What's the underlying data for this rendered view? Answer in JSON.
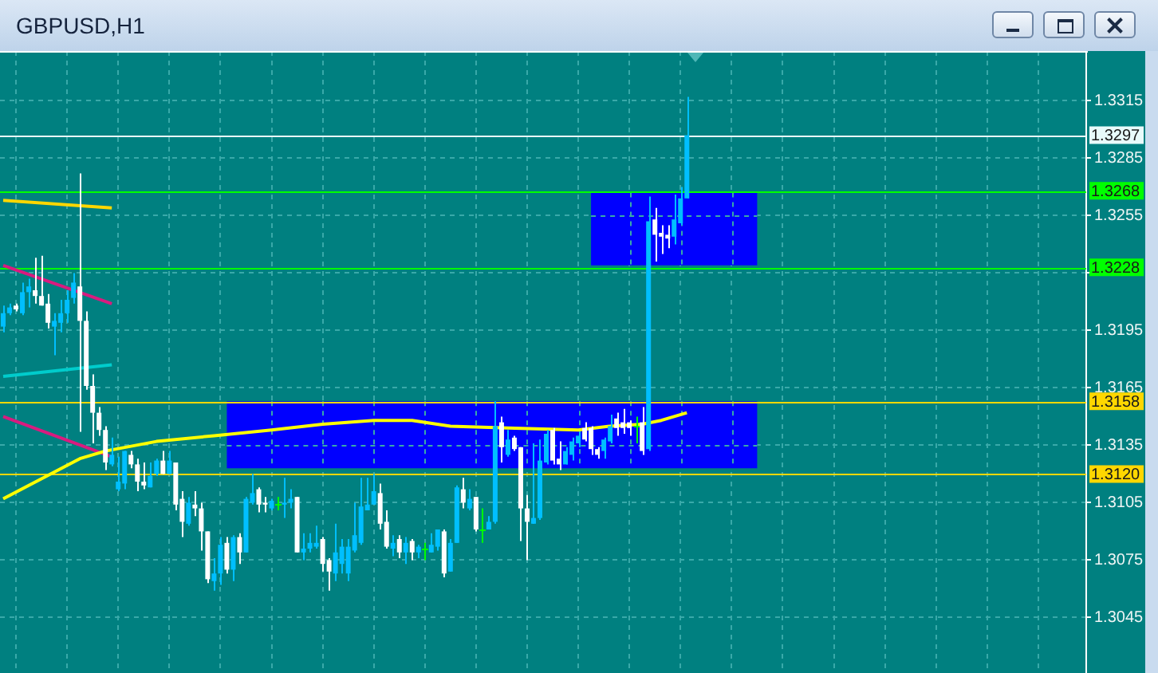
{
  "chart_data": {
    "type": "candlestick",
    "title": "GBPUSD,H1",
    "categories": [
      null,
      null,
      null,
      null,
      null,
      null,
      null,
      null,
      null,
      null,
      null,
      null,
      null,
      null,
      null,
      null,
      null,
      null,
      null,
      null,
      null,
      null,
      null,
      null,
      null,
      null,
      null,
      null,
      null,
      null,
      null,
      null,
      null,
      null,
      null,
      null,
      null,
      null,
      null,
      null,
      null,
      null,
      null,
      null,
      null,
      null,
      null,
      null,
      null,
      null,
      null,
      null,
      null,
      null,
      null,
      null,
      null,
      null,
      null,
      null,
      null,
      null,
      null,
      null,
      null,
      null,
      null,
      null,
      null,
      null,
      null,
      null,
      null,
      null,
      null,
      null,
      null,
      null,
      null,
      null,
      null,
      null,
      null,
      null,
      null,
      null,
      null,
      null,
      null,
      null,
      null,
      null,
      null,
      null,
      null,
      null,
      null,
      null,
      null,
      null,
      null,
      null,
      null,
      null,
      null,
      null,
      null,
      null,
      null,
      null,
      null,
      null,
      null,
      null,
      null,
      null,
      null,
      null,
      null,
      null,
      null,
      null,
      null,
      null,
      null,
      null,
      null,
      null,
      null,
      null,
      null,
      null,
      null,
      null,
      null,
      null,
      null,
      null,
      null,
      null,
      null,
      null,
      null,
      null,
      null,
      null,
      null,
      null,
      null,
      null,
      null,
      null,
      null,
      null,
      null,
      null,
      null,
      null,
      null,
      null,
      null,
      null,
      null,
      null,
      null,
      null,
      null,
      null,
      null,
      null
    ],
    "ohlc": [
      [
        1.3197,
        1.3208,
        1.3194,
        1.3204
      ],
      [
        1.3204,
        1.3209,
        1.3203,
        1.3207
      ],
      [
        1.3208,
        1.3209,
        1.3205,
        1.3206
      ],
      [
        1.3204,
        1.322,
        1.3203,
        1.3215
      ],
      [
        1.3215,
        1.3222,
        1.3207,
        1.3218
      ],
      [
        1.3216,
        1.3233,
        1.3209,
        1.3213
      ],
      [
        1.3213,
        1.3234,
        1.3208,
        1.3208
      ],
      [
        1.3209,
        1.3214,
        1.3196,
        1.3199
      ],
      [
        1.3197,
        1.3204,
        1.3182,
        1.32
      ],
      [
        1.3199,
        1.3211,
        1.3194,
        1.3204
      ],
      [
        1.3204,
        1.3216,
        1.3199,
        1.3211
      ],
      [
        1.3212,
        1.3225,
        1.3209,
        1.322
      ],
      [
        1.3218,
        1.3277,
        1.3142,
        1.32
      ],
      [
        1.32,
        1.3205,
        1.3164,
        1.3166
      ],
      [
        1.3166,
        1.3172,
        1.3136,
        1.3152
      ],
      [
        1.3152,
        1.3155,
        1.314,
        1.3143
      ],
      [
        1.3143,
        1.3145,
        1.3122,
        1.3126
      ],
      [
        1.3125,
        1.3139,
        1.3124,
        1.313
      ],
      [
        1.3112,
        1.3129,
        1.3111,
        1.3116
      ],
      [
        1.3115,
        1.3132,
        1.3112,
        1.3132
      ],
      [
        1.313,
        1.3132,
        1.3123,
        1.3125
      ],
      [
        1.3125,
        1.3128,
        1.3111,
        1.3116
      ],
      [
        1.3116,
        1.3126,
        1.3112,
        1.3114
      ],
      [
        1.3113,
        1.3126,
        1.3113,
        1.3119
      ],
      [
        1.312,
        1.3128,
        1.3119,
        1.3127
      ],
      [
        1.3127,
        1.3132,
        1.312,
        1.312
      ],
      [
        1.312,
        1.3132,
        1.312,
        1.3127
      ],
      [
        1.3126,
        1.3126,
        1.3101,
        1.3104
      ],
      [
        1.3107,
        1.3111,
        1.3087,
        1.3095
      ],
      [
        1.3094,
        1.3108,
        1.3093,
        1.3105
      ],
      [
        1.3104,
        1.3111,
        1.3098,
        1.3102
      ],
      [
        1.3102,
        1.3105,
        1.308,
        1.309
      ],
      [
        1.309,
        1.309,
        1.3063,
        1.3065
      ],
      [
        1.3064,
        1.3076,
        1.3059,
        1.3068
      ],
      [
        1.3068,
        1.3087,
        1.3062,
        1.3083
      ],
      [
        1.3084,
        1.3087,
        1.3068,
        1.307
      ],
      [
        1.307,
        1.3088,
        1.3064,
        1.3087
      ],
      [
        1.3087,
        1.3089,
        1.3073,
        1.3079
      ],
      [
        1.3079,
        1.3108,
        1.3079,
        1.3107
      ],
      [
        1.3105,
        1.312,
        1.3104,
        1.311
      ],
      [
        1.3112,
        1.3113,
        1.31,
        1.3104
      ],
      [
        1.3105,
        1.3108,
        1.31,
        1.3104
      ],
      [
        1.3102,
        1.3107,
        1.3101,
        1.3106
      ],
      [
        1.3104,
        1.3108,
        1.3101,
        1.3104
      ],
      [
        1.3104,
        1.3118,
        1.3097,
        1.3105
      ],
      [
        1.3105,
        1.3112,
        1.3102,
        1.3107
      ],
      [
        1.3108,
        1.3108,
        1.3079,
        1.3079
      ],
      [
        1.3079,
        1.3089,
        1.3075,
        1.3081
      ],
      [
        1.3081,
        1.3089,
        1.3079,
        1.3084
      ],
      [
        1.3082,
        1.3093,
        1.3081,
        1.3084
      ],
      [
        1.3086,
        1.3087,
        1.3069,
        1.3073
      ],
      [
        1.3075,
        1.3076,
        1.3059,
        1.3069
      ],
      [
        1.3068,
        1.3094,
        1.3064,
        1.3079
      ],
      [
        1.3073,
        1.3086,
        1.3068,
        1.3082
      ],
      [
        1.3068,
        1.3086,
        1.3064,
        1.3082
      ],
      [
        1.308,
        1.3105,
        1.3079,
        1.3088
      ],
      [
        1.3084,
        1.3118,
        1.3083,
        1.3103
      ],
      [
        1.3101,
        1.3118,
        1.3101,
        1.3104
      ],
      [
        1.3104,
        1.312,
        1.3104,
        1.3111
      ],
      [
        1.311,
        1.3115,
        1.3091,
        1.3094
      ],
      [
        1.3095,
        1.3101,
        1.3081,
        1.3082
      ],
      [
        1.3081,
        1.3088,
        1.3077,
        1.3084
      ],
      [
        1.3086,
        1.3088,
        1.3076,
        1.3079
      ],
      [
        1.3079,
        1.3087,
        1.3073,
        1.3084
      ],
      [
        1.3085,
        1.3086,
        1.3075,
        1.3079
      ],
      [
        1.3079,
        1.3083,
        1.3076,
        1.3082
      ],
      [
        1.3081,
        1.3084,
        1.3075,
        1.3081
      ],
      [
        1.3079,
        1.3089,
        1.3079,
        1.3083
      ],
      [
        1.3082,
        1.3091,
        1.308,
        1.3091
      ],
      [
        1.309,
        1.3091,
        1.3066,
        1.3068
      ],
      [
        1.3069,
        1.3086,
        1.3069,
        1.3084
      ],
      [
        1.3084,
        1.3114,
        1.3084,
        1.3113
      ],
      [
        1.3112,
        1.3118,
        1.3102,
        1.3105
      ],
      [
        1.3102,
        1.3112,
        1.3101,
        1.3107
      ],
      [
        1.3108,
        1.3108,
        1.309,
        1.3091
      ],
      [
        1.3091,
        1.3102,
        1.3084,
        1.3091
      ],
      [
        1.3091,
        1.3098,
        1.3091,
        1.3095
      ],
      [
        1.3095,
        1.3158,
        1.3094,
        1.3145
      ],
      [
        1.3147,
        1.315,
        1.3126,
        1.3134
      ],
      [
        1.313,
        1.3143,
        1.3129,
        1.3138
      ],
      [
        1.3139,
        1.314,
        1.3132,
        1.3133
      ],
      [
        1.3134,
        1.3134,
        1.3085,
        1.3102
      ],
      [
        1.3102,
        1.3109,
        1.3075,
        1.3095
      ],
      [
        1.3094,
        1.3136,
        1.3094,
        1.3097
      ],
      [
        1.3097,
        1.3138,
        1.3096,
        1.3127
      ],
      [
        1.3126,
        1.3143,
        1.3125,
        1.3141
      ],
      [
        1.3143,
        1.3144,
        1.3125,
        1.3127
      ],
      [
        1.3128,
        1.3137,
        1.3122,
        1.3125
      ],
      [
        1.3125,
        1.3134,
        1.3125,
        1.3132
      ],
      [
        1.313,
        1.3139,
        1.3127,
        1.3137
      ],
      [
        1.3136,
        1.3142,
        1.3134,
        1.314
      ],
      [
        1.3144,
        1.3147,
        1.3137,
        1.3138
      ],
      [
        1.3144,
        1.3145,
        1.313,
        1.3133
      ],
      [
        1.3133,
        1.3134,
        1.3128,
        1.313
      ],
      [
        1.3132,
        1.3139,
        1.3128,
        1.3138
      ],
      [
        1.3137,
        1.3151,
        1.3136,
        1.3145
      ],
      [
        1.3149,
        1.3152,
        1.314,
        1.3144
      ],
      [
        1.3147,
        1.3154,
        1.3141,
        1.3144
      ],
      [
        1.3147,
        1.3148,
        1.314,
        1.3144
      ],
      [
        1.3145,
        1.315,
        1.3136,
        1.3145
      ],
      [
        1.3147,
        1.3155,
        1.313,
        1.3132
      ],
      [
        1.3133,
        1.3265,
        1.3132,
        1.3252
      ],
      [
        1.3253,
        1.3259,
        1.3231,
        1.3245
      ],
      [
        1.3246,
        1.325,
        1.3235,
        1.3244
      ],
      [
        1.3245,
        1.325,
        1.3238,
        1.3243
      ],
      [
        1.3244,
        1.3266,
        1.324,
        1.3253
      ],
      [
        1.3251,
        1.327,
        1.325,
        1.3264
      ],
      [
        1.3264,
        1.3317,
        1.3264,
        1.3297
      ],
      null,
      null,
      null,
      null,
      null,
      null,
      null,
      null,
      null,
      null,
      null,
      null,
      null,
      null,
      null,
      null,
      null,
      null,
      null,
      null,
      null,
      null,
      null,
      null,
      null,
      null,
      null,
      null,
      null,
      null,
      null,
      null,
      null,
      null,
      null,
      null,
      null,
      null,
      null,
      null,
      null,
      null,
      null,
      null,
      null,
      null,
      null,
      null,
      null,
      null,
      null,
      null,
      null,
      null,
      null,
      null,
      null,
      null,
      null,
      null,
      null,
      null
    ],
    "colors": [
      "#00bfff",
      "#00bfff",
      "#ffffff",
      "#00bfff",
      "#00bfff",
      "#ffffff",
      "#ffffff",
      "#ffffff",
      "#00bfff",
      "#00bfff",
      "#00bfff",
      "#00bfff",
      "#ffffff",
      "#ffffff",
      "#ffffff",
      "#ffffff",
      "#ffffff",
      "#00bfff",
      "#00bfff",
      "#00bfff",
      "#ffffff",
      "#ffffff",
      "#ffffff",
      "#00bfff",
      "#00bfff",
      "#ffffff",
      "#00bfff",
      "#ffffff",
      "#ffffff",
      "#00bfff",
      "#ffffff",
      "#ffffff",
      "#ffffff",
      "#00bfff",
      "#00bfff",
      "#ffffff",
      "#00bfff",
      "#ffffff",
      "#00bfff",
      "#00bfff",
      "#ffffff",
      "#ffffff",
      "#00bfff",
      "#00ff00",
      "#00bfff",
      "#00bfff",
      "#ffffff",
      "#00bfff",
      "#00bfff",
      "#00bfff",
      "#ffffff",
      "#ffffff",
      "#00bfff",
      "#00bfff",
      "#00bfff",
      "#00bfff",
      "#00bfff",
      "#00bfff",
      "#00bfff",
      "#ffffff",
      "#ffffff",
      "#00bfff",
      "#ffffff",
      "#00bfff",
      "#ffffff",
      "#00bfff",
      "#00ff00",
      "#00bfff",
      "#00bfff",
      "#ffffff",
      "#00bfff",
      "#00bfff",
      "#ffffff",
      "#00bfff",
      "#ffffff",
      "#00ff00",
      "#00bfff",
      "#00bfff",
      "#ffffff",
      "#00bfff",
      "#ffffff",
      "#ffffff",
      "#ffffff",
      "#00bfff",
      "#00bfff",
      "#00bfff",
      "#ffffff",
      "#ffffff",
      "#00bfff",
      "#00bfff",
      "#00bfff",
      "#ffffff",
      "#ffffff",
      "#ffffff",
      "#00bfff",
      "#00bfff",
      "#ffffff",
      "#ffffff",
      "#ffffff",
      "#00ff00",
      "#ffffff",
      "#00bfff",
      "#ffffff",
      "#ffffff",
      "#ffffff",
      "#00bfff",
      "#00bfff",
      "#00bfff",
      null,
      null,
      null,
      null,
      null,
      null,
      null,
      null,
      null,
      null,
      null,
      null,
      null,
      null,
      null,
      null,
      null,
      null,
      null,
      null,
      null,
      null,
      null,
      null,
      null,
      null,
      null,
      null,
      null,
      null,
      null,
      null,
      null,
      null,
      null,
      null,
      null,
      null,
      null,
      null,
      null,
      null,
      null,
      null,
      null,
      null,
      null,
      null,
      null,
      null,
      null,
      null,
      null,
      null,
      null,
      null,
      null,
      null,
      null,
      null,
      null,
      null
    ],
    "series": [
      {
        "type": "line",
        "color": "#ffff00",
        "values": [
          1.3107,
          null,
          null,
          null,
          null,
          null,
          null,
          null,
          null,
          null,
          null,
          null,
          1.3128,
          null,
          null,
          null,
          1.3132,
          null,
          null,
          null,
          null,
          null,
          null,
          null,
          1.3137,
          null,
          null,
          null,
          null,
          null,
          null,
          null,
          null,
          1.314,
          null,
          null,
          null,
          null,
          null,
          null,
          null,
          null,
          1.3143,
          null,
          null,
          null,
          null,
          null,
          null,
          null,
          1.3146,
          null,
          null,
          null,
          null,
          null,
          null,
          null,
          1.3148,
          null,
          null,
          null,
          null,
          null,
          1.3148,
          null,
          null,
          null,
          null,
          null,
          1.3145,
          null,
          null,
          null,
          null,
          null,
          null,
          null,
          null,
          1.3144,
          null,
          null,
          null,
          null,
          null,
          null,
          null,
          null,
          null,
          null,
          1.3143,
          null,
          null,
          null,
          null,
          1.3145,
          null,
          null,
          null,
          null,
          1.3146,
          null,
          null,
          1.3148,
          null,
          null,
          null,
          1.3152,
          null,
          null,
          null,
          null,
          null,
          null,
          null,
          null,
          null,
          null,
          null,
          null,
          null,
          null,
          null,
          null,
          null,
          null,
          null,
          null,
          null,
          null,
          null,
          null,
          null,
          null,
          null,
          null,
          null,
          null,
          null,
          null,
          null,
          null,
          null,
          null,
          null,
          null,
          null,
          null,
          null,
          null,
          null,
          null,
          null,
          null,
          null,
          null,
          null,
          null,
          null,
          null,
          null,
          null,
          null,
          null,
          null,
          null,
          null,
          null,
          null,
          null
        ]
      },
      {
        "type": "line",
        "color": "#ffd700",
        "values": [
          1.3263,
          null,
          null,
          null,
          null,
          null,
          null,
          null,
          null,
          null,
          null,
          null,
          null,
          null,
          null,
          null,
          null,
          1.3259,
          null,
          null,
          null,
          null,
          null,
          null,
          null,
          null,
          null,
          null,
          null,
          null,
          null,
          null,
          null,
          null,
          null,
          null,
          null,
          null,
          null,
          null,
          null,
          null,
          null,
          null,
          null,
          null,
          null,
          null,
          null,
          null,
          null,
          null,
          null,
          null,
          null,
          null,
          null,
          null,
          null,
          null,
          null,
          null,
          null,
          null,
          null,
          null,
          null,
          null,
          null,
          null,
          null,
          null,
          null,
          null,
          null,
          null,
          null,
          null,
          null,
          null,
          null,
          null,
          null,
          null,
          null,
          null,
          null,
          null,
          null,
          null,
          null,
          null,
          null,
          null,
          null,
          null,
          null,
          null,
          null,
          null,
          null,
          null,
          null,
          null,
          null,
          null,
          null,
          null,
          null,
          null,
          null,
          null,
          null,
          null,
          null,
          null,
          null,
          null,
          null,
          null,
          null,
          null,
          null,
          null,
          null,
          null,
          null,
          null,
          null,
          null,
          null,
          null,
          null,
          null,
          null,
          null,
          null,
          null,
          null,
          null,
          null,
          null,
          null,
          null,
          null,
          null,
          null,
          null,
          null,
          null,
          null,
          null,
          null,
          null,
          null,
          null,
          null,
          null,
          null,
          null,
          null,
          null,
          null,
          null,
          null,
          null,
          null,
          null,
          null,
          null
        ]
      },
      {
        "type": "line",
        "color": "#d81b7f",
        "values": [
          1.3229,
          null,
          null,
          null,
          null,
          null,
          null,
          null,
          null,
          null,
          null,
          null,
          null,
          null,
          null,
          null,
          null,
          1.3209,
          null,
          null,
          null,
          null,
          null,
          null,
          null,
          null,
          null,
          null,
          null,
          null,
          null,
          null,
          null,
          null,
          null,
          null,
          null,
          null,
          null,
          null,
          null,
          null,
          null,
          null,
          null,
          null,
          null,
          null,
          null,
          null,
          null,
          null,
          null,
          null,
          null,
          null,
          null,
          null,
          null,
          null,
          null,
          null,
          null,
          null,
          null,
          null,
          null,
          null,
          null,
          null,
          null,
          null,
          null,
          null,
          null,
          null,
          null,
          null,
          null,
          null,
          null,
          null,
          null,
          null,
          null,
          null,
          null,
          null,
          null,
          null,
          null,
          null,
          null,
          null,
          null,
          null,
          null,
          null,
          null,
          null,
          null,
          null,
          null,
          null,
          null,
          null,
          null,
          null,
          null,
          null,
          null,
          null,
          null,
          null,
          null,
          null,
          null,
          null,
          null,
          null,
          null,
          null,
          null,
          null,
          null,
          null,
          null,
          null,
          null,
          null,
          null,
          null,
          null,
          null,
          null,
          null,
          null,
          null,
          null,
          null,
          null,
          null,
          null,
          null,
          null,
          null,
          null,
          null,
          null,
          null,
          null,
          null,
          null,
          null,
          null,
          null,
          null,
          null,
          null,
          null,
          null,
          null,
          null,
          null,
          null,
          null,
          null,
          null,
          null,
          null
        ]
      },
      {
        "type": "line",
        "color": "#00cccc",
        "values": [
          1.3171,
          null,
          null,
          null,
          null,
          null,
          null,
          null,
          null,
          null,
          null,
          null,
          null,
          null,
          null,
          null,
          null,
          1.3177,
          null,
          null,
          null,
          null,
          null,
          null,
          null,
          null,
          null,
          null,
          null,
          null,
          null,
          null,
          null,
          null,
          null,
          null,
          null,
          null,
          null,
          null,
          null,
          null,
          null,
          null,
          null,
          null,
          null,
          null,
          null,
          null,
          null,
          null,
          null,
          null,
          null,
          null,
          null,
          null,
          null,
          null,
          null,
          null,
          null,
          null,
          null,
          null,
          null,
          null,
          null,
          null,
          null,
          null,
          null,
          null,
          null,
          null,
          null,
          null,
          null,
          null,
          null,
          null,
          null,
          null,
          null,
          null,
          null,
          null,
          null,
          null,
          null,
          null,
          null,
          null,
          null,
          null,
          null,
          null,
          null,
          null,
          null,
          null,
          null,
          null,
          null,
          null,
          null,
          null,
          null,
          null,
          null,
          null,
          null,
          null,
          null,
          null,
          null,
          null,
          null,
          null,
          null,
          null,
          null,
          null,
          null,
          null,
          null,
          null,
          null,
          null,
          null,
          null,
          null,
          null,
          null,
          null,
          null,
          null,
          null,
          null,
          null,
          null,
          null,
          null,
          null,
          null,
          null,
          null,
          null,
          null,
          null,
          null,
          null,
          null,
          null,
          null,
          null,
          null,
          null,
          null,
          null,
          null,
          null,
          null,
          null,
          null,
          null,
          null,
          null,
          null
        ]
      },
      {
        "type": "line",
        "color": "#d81b7f",
        "values": [
          1.315,
          null,
          null,
          null,
          null,
          null,
          null,
          null,
          null,
          null,
          null,
          null,
          null,
          null,
          null,
          null,
          null,
          1.3129,
          null,
          null,
          null,
          null,
          null,
          null,
          null,
          null,
          null,
          null,
          null,
          null,
          null,
          null,
          null,
          null,
          null,
          null,
          null,
          null,
          null,
          null,
          null,
          null,
          null,
          null,
          null,
          null,
          null,
          null,
          null,
          null,
          null,
          null,
          null,
          null,
          null,
          null,
          null,
          null,
          null,
          null,
          null,
          null,
          null,
          null,
          null,
          null,
          null,
          null,
          null,
          null,
          null,
          null,
          null,
          null,
          null,
          null,
          null,
          null,
          null,
          null,
          null,
          null,
          null,
          null,
          null,
          null,
          null,
          null,
          null,
          null,
          null,
          null,
          null,
          null,
          null,
          null,
          null,
          null,
          null,
          null,
          null,
          null,
          null,
          null,
          null,
          null,
          null,
          null,
          null,
          null,
          null,
          null,
          null,
          null,
          null,
          null,
          null,
          null,
          null,
          null,
          null,
          null,
          null,
          null,
          null,
          null,
          null,
          null,
          null,
          null,
          null,
          null,
          null,
          null,
          null,
          null,
          null,
          null,
          null,
          null,
          null,
          null,
          null,
          null,
          null,
          null,
          null,
          null,
          null,
          null,
          null,
          null,
          null,
          null,
          null,
          null,
          null,
          null,
          null,
          null,
          null,
          null,
          null,
          null,
          null,
          null,
          null,
          null,
          null,
          null
        ]
      }
    ],
    "ylim": [
      1.3016,
      1.3341
    ],
    "yticks": [
      1.3045,
      1.3075,
      1.3105,
      1.3135,
      1.3165,
      1.3195,
      {
        "value": 1.3225,
        "label": null
      },
      1.3255,
      1.3285,
      1.3315
    ],
    "grid": true,
    "tick_labels": "y",
    "marker": "none",
    "bands": [
      {
        "axis": "y",
        "from": 1.3123,
        "to": 1.3158,
        "color": "#0000ff"
      },
      {
        "axis": "y",
        "from": 1.3229,
        "to": 1.3267,
        "color": "#0000ff"
      }
    ],
    "ref_lines": [
      {
        "axis": "y",
        "value": 1.3297,
        "label": "1.3297",
        "color": "#e8fbfb"
      },
      {
        "axis": "y",
        "value": 1.3268,
        "label": "1.3268",
        "color": "#00ff00"
      },
      {
        "axis": "y",
        "value": 1.3228,
        "label": "1.3228",
        "color": "#00ff00"
      },
      {
        "axis": "y",
        "value": 1.3158,
        "label": "1.3158",
        "color": "#ffd700"
      },
      {
        "axis": "y",
        "value": 1.312,
        "label": "1.3120",
        "color": "#ffd700"
      }
    ]
  }
}
